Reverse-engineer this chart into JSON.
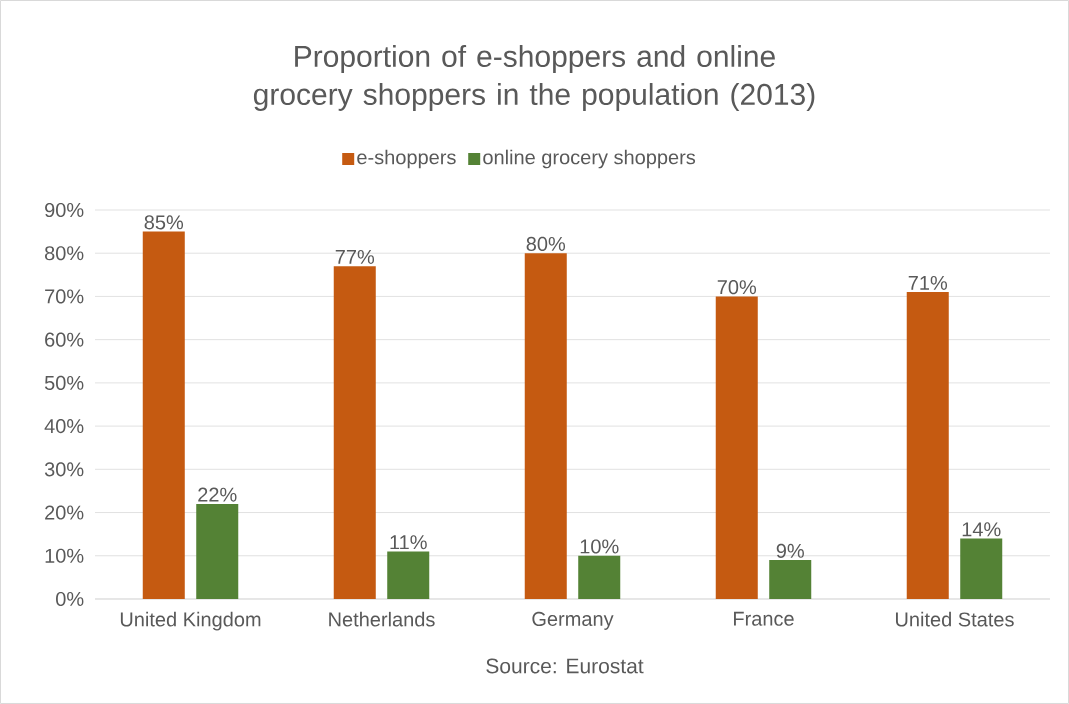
{
  "chart_data": {
    "type": "bar",
    "title": "Proportion of e-shoppers and online grocery shoppers in the population (2013)",
    "categories": [
      "United Kingdom",
      "Netherlands",
      "Germany",
      "France",
      "United States"
    ],
    "series": [
      {
        "name": "e-shoppers",
        "color": "#c55a11",
        "values": [
          85,
          77,
          80,
          70,
          71
        ],
        "value_labels": [
          "85%",
          "77%",
          "80%",
          "70%",
          "71%"
        ]
      },
      {
        "name": "online grocery shoppers",
        "color": "#548235",
        "values": [
          22,
          11,
          10,
          9,
          14
        ],
        "value_labels": [
          "22%",
          "11%",
          "10%",
          "9%",
          "14%"
        ]
      }
    ],
    "ylim": [
      0,
      90
    ],
    "yticks": [
      {
        "value": 0,
        "label": "0%"
      },
      {
        "value": 10,
        "label": "10%"
      },
      {
        "value": 20,
        "label": "20%"
      },
      {
        "value": 30,
        "label": "30%"
      },
      {
        "value": 40,
        "label": "40%"
      },
      {
        "value": 50,
        "label": "50%"
      },
      {
        "value": 60,
        "label": "60%"
      },
      {
        "value": 70,
        "label": "70%"
      },
      {
        "value": 80,
        "label": "80%"
      },
      {
        "value": 90,
        "label": "90%"
      }
    ],
    "grid": "y",
    "legend": "top",
    "annotations": [
      "Source: Eurostat"
    ]
  }
}
